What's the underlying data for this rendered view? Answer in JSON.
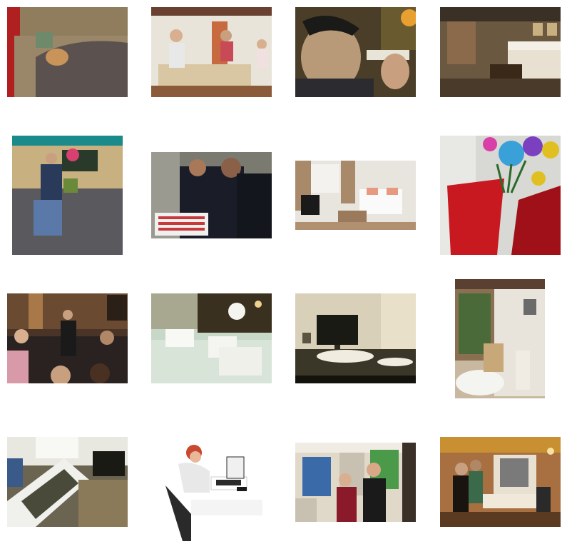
{
  "grid": {
    "rows": 4,
    "columns": 4,
    "background": "#ffffff"
  },
  "images": [
    {
      "id": 1,
      "subject": "dog-on-couch-under-blanket-photo",
      "palette": [
        "#8a7a60",
        "#5b5250",
        "#a08c70",
        "#6f8a6a"
      ]
    },
    {
      "id": 2,
      "subject": "people-in-living-room-photo",
      "palette": [
        "#e9e4da",
        "#d8c7a2",
        "#6a5a4a",
        "#c84a56"
      ]
    },
    {
      "id": 3,
      "subject": "man-with-wii-remote-photo",
      "palette": [
        "#3a3020",
        "#b89a78",
        "#c8c0a8",
        "#2c2c30"
      ]
    },
    {
      "id": 4,
      "subject": "hotel-bedroom-photo",
      "palette": [
        "#5a4a3a",
        "#d8cfc0",
        "#8a6a4a",
        "#2a2018"
      ]
    },
    {
      "id": 5,
      "subject": "man-throwing-frisbee-photo",
      "palette": [
        "#6a6a6e",
        "#2a3a5a",
        "#1a8a8a",
        "#c8b080"
      ]
    },
    {
      "id": 6,
      "subject": "sailors-cutting-flag-cake-photo",
      "palette": [
        "#1a1c28",
        "#c83a3a",
        "#f0f0f0",
        "#7a7a70"
      ]
    },
    {
      "id": 7,
      "subject": "white-bedroom-photo",
      "palette": [
        "#e8e4de",
        "#a88a6a",
        "#2a2a2a",
        "#f4f2ee"
      ]
    },
    {
      "id": 8,
      "subject": "red-cup-with-flowers-photo",
      "palette": [
        "#c81820",
        "#3aa0d8",
        "#d840a8",
        "#e0c020"
      ]
    },
    {
      "id": 9,
      "subject": "audience-at-event-photo",
      "palette": [
        "#3a2a20",
        "#a87848",
        "#d8c8a8",
        "#1a1a1a"
      ]
    },
    {
      "id": 10,
      "subject": "white-glass-interior-photo",
      "palette": [
        "#c8d8c8",
        "#f4f4f0",
        "#3a3020",
        "#a8b8a0"
      ]
    },
    {
      "id": 11,
      "subject": "cat-on-desk-by-monitor-photo",
      "palette": [
        "#d8d0b8",
        "#1a1a14",
        "#f0ece0",
        "#5a5440"
      ]
    },
    {
      "id": 12,
      "subject": "bathroom-with-tub-photo",
      "palette": [
        "#8a7050",
        "#e8e4dc",
        "#4a6a3a",
        "#c8a878"
      ]
    },
    {
      "id": 13,
      "subject": "sunlit-room-with-sofa-photo",
      "palette": [
        "#4a4a3a",
        "#f0f0ec",
        "#3a5a8a",
        "#8a7a5a"
      ]
    },
    {
      "id": 14,
      "subject": "woman-at-laptop-photo",
      "palette": [
        "#ffffff",
        "#c84830",
        "#2a2a2a",
        "#e8e8e8"
      ]
    },
    {
      "id": 15,
      "subject": "people-at-booth-photo",
      "palette": [
        "#e0d8c8",
        "#8a1a2a",
        "#1a1a1a",
        "#4a9a4a"
      ]
    },
    {
      "id": 16,
      "subject": "dining-room-party-photo",
      "palette": [
        "#c89030",
        "#1a1410",
        "#3a6a4a",
        "#a87040"
      ]
    }
  ]
}
